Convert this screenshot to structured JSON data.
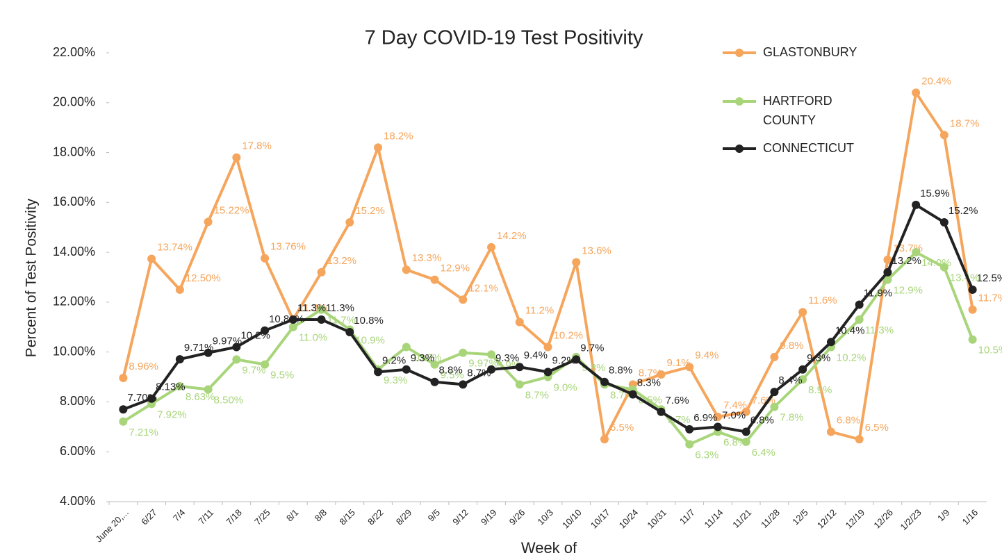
{
  "chart_data": {
    "type": "line",
    "title": "7 Day COVID-19 Test Positivity",
    "x_label": "Week of",
    "y_label": "Percent of Test Positivity",
    "categories": [
      "June 20,...",
      "6/27",
      "7/4",
      "7/11",
      "7/18",
      "7/25",
      "8/1",
      "8/8",
      "8/15",
      "8/22",
      "8/29",
      "9/5",
      "9/12",
      "9/19",
      "9/26",
      "10/3",
      "10/10",
      "10/17",
      "10/24",
      "10/31",
      "11/7",
      "11/14",
      "11/21",
      "11/28",
      "12/5",
      "12/12",
      "12/19",
      "12/26",
      "1/2/23",
      "1/9",
      "1/16"
    ],
    "ylim": [
      4,
      22
    ],
    "yticks": [
      {
        "value": 4,
        "label": "4.00%"
      },
      {
        "value": 6,
        "label": "6.00%"
      },
      {
        "value": 8,
        "label": "8.00%"
      },
      {
        "value": 10,
        "label": "10.00%"
      },
      {
        "value": 12,
        "label": "12.00%"
      },
      {
        "value": 14,
        "label": "14.00%"
      },
      {
        "value": 16,
        "label": "16.00%"
      },
      {
        "value": 18,
        "label": "18.00%"
      },
      {
        "value": 20,
        "label": "20.00%"
      },
      {
        "value": 22,
        "label": "22.00%"
      }
    ],
    "series": [
      {
        "name": "GLASTONBURY",
        "color": "#f5a55c",
        "values": [
          8.96,
          13.74,
          12.5,
          15.22,
          17.8,
          13.76,
          11.3,
          13.2,
          15.2,
          18.2,
          13.3,
          12.9,
          12.1,
          14.2,
          11.2,
          10.2,
          13.6,
          6.5,
          8.7,
          9.1,
          9.4,
          7.4,
          7.6,
          9.8,
          11.6,
          6.8,
          6.5,
          13.7,
          20.4,
          18.7,
          11.7
        ],
        "value_labels": [
          "8.96%",
          "13.74%",
          "12.50%",
          "15.22%",
          "17.8%",
          "13.76%",
          "11.3%",
          "13.2%",
          "15.2%",
          "18.2%",
          "13.3%",
          "12.9%",
          "12.1%",
          "14.2%",
          "11.2%",
          "10.2%",
          "13.6%",
          "6.5%",
          "8.7%",
          "9.1%",
          "9.4%",
          "7.4%",
          "7.6%",
          "9.8%",
          "11.6%",
          "6.8%",
          "6.5%",
          "13.7%",
          "20.4%",
          "18.7%",
          "11.7%"
        ]
      },
      {
        "name": "HARTFORD COUNTY",
        "color": "#a8d57a",
        "values": [
          7.21,
          7.92,
          8.63,
          8.5,
          9.7,
          9.5,
          11.0,
          11.7,
          10.9,
          9.3,
          10.2,
          9.5,
          9.97,
          9.9,
          8.7,
          9.0,
          9.8,
          8.7,
          8.5,
          7.7,
          6.3,
          6.8,
          6.4,
          7.8,
          8.9,
          10.2,
          11.3,
          12.9,
          14.0,
          13.4,
          10.5
        ],
        "value_labels": [
          "7.21%",
          "7.92%",
          "8.63%",
          "8.50%",
          "9.7%",
          "9.5%",
          "11.0%",
          "11.7%",
          "10.9%",
          "9.3%",
          "10.2%",
          "9.5%",
          "9.97%",
          "9.9%",
          "8.7%",
          "9.0%",
          "9.8%",
          "8.7%",
          "8.5%",
          "7.7%",
          "6.3%",
          "6.8%",
          "6.4%",
          "7.8%",
          "8.9%",
          "10.2%",
          "11.3%",
          "12.9%",
          "14.0%",
          "13.4%",
          "10.5%"
        ]
      },
      {
        "name": "CONNECTICUT",
        "color": "#222222",
        "values": [
          7.7,
          8.13,
          9.71,
          9.97,
          10.2,
          10.86,
          11.3,
          11.3,
          10.8,
          9.2,
          9.3,
          8.8,
          8.7,
          9.3,
          9.4,
          9.2,
          9.7,
          8.8,
          8.3,
          7.6,
          6.9,
          7.0,
          6.8,
          8.4,
          9.3,
          10.4,
          11.9,
          13.2,
          15.9,
          15.2,
          12.5
        ],
        "value_labels": [
          "7.70%",
          "8.13%",
          "9.71%",
          "9.97%",
          "10.2%",
          "10.86%",
          "11.3%",
          "11.3%",
          "10.8%",
          "9.2%",
          "9.3%",
          "8.8%",
          "8.7%",
          "9.3%",
          "9.4%",
          "9.2%",
          "9.7%",
          "8.8%",
          "8.3%",
          "7.6%",
          "6.9%",
          "7.0%",
          "6.8%",
          "8.4%",
          "9.3%",
          "10.4%",
          "11.9%",
          "13.2%",
          "15.9%",
          "15.2%",
          "12.5%"
        ]
      }
    ]
  }
}
